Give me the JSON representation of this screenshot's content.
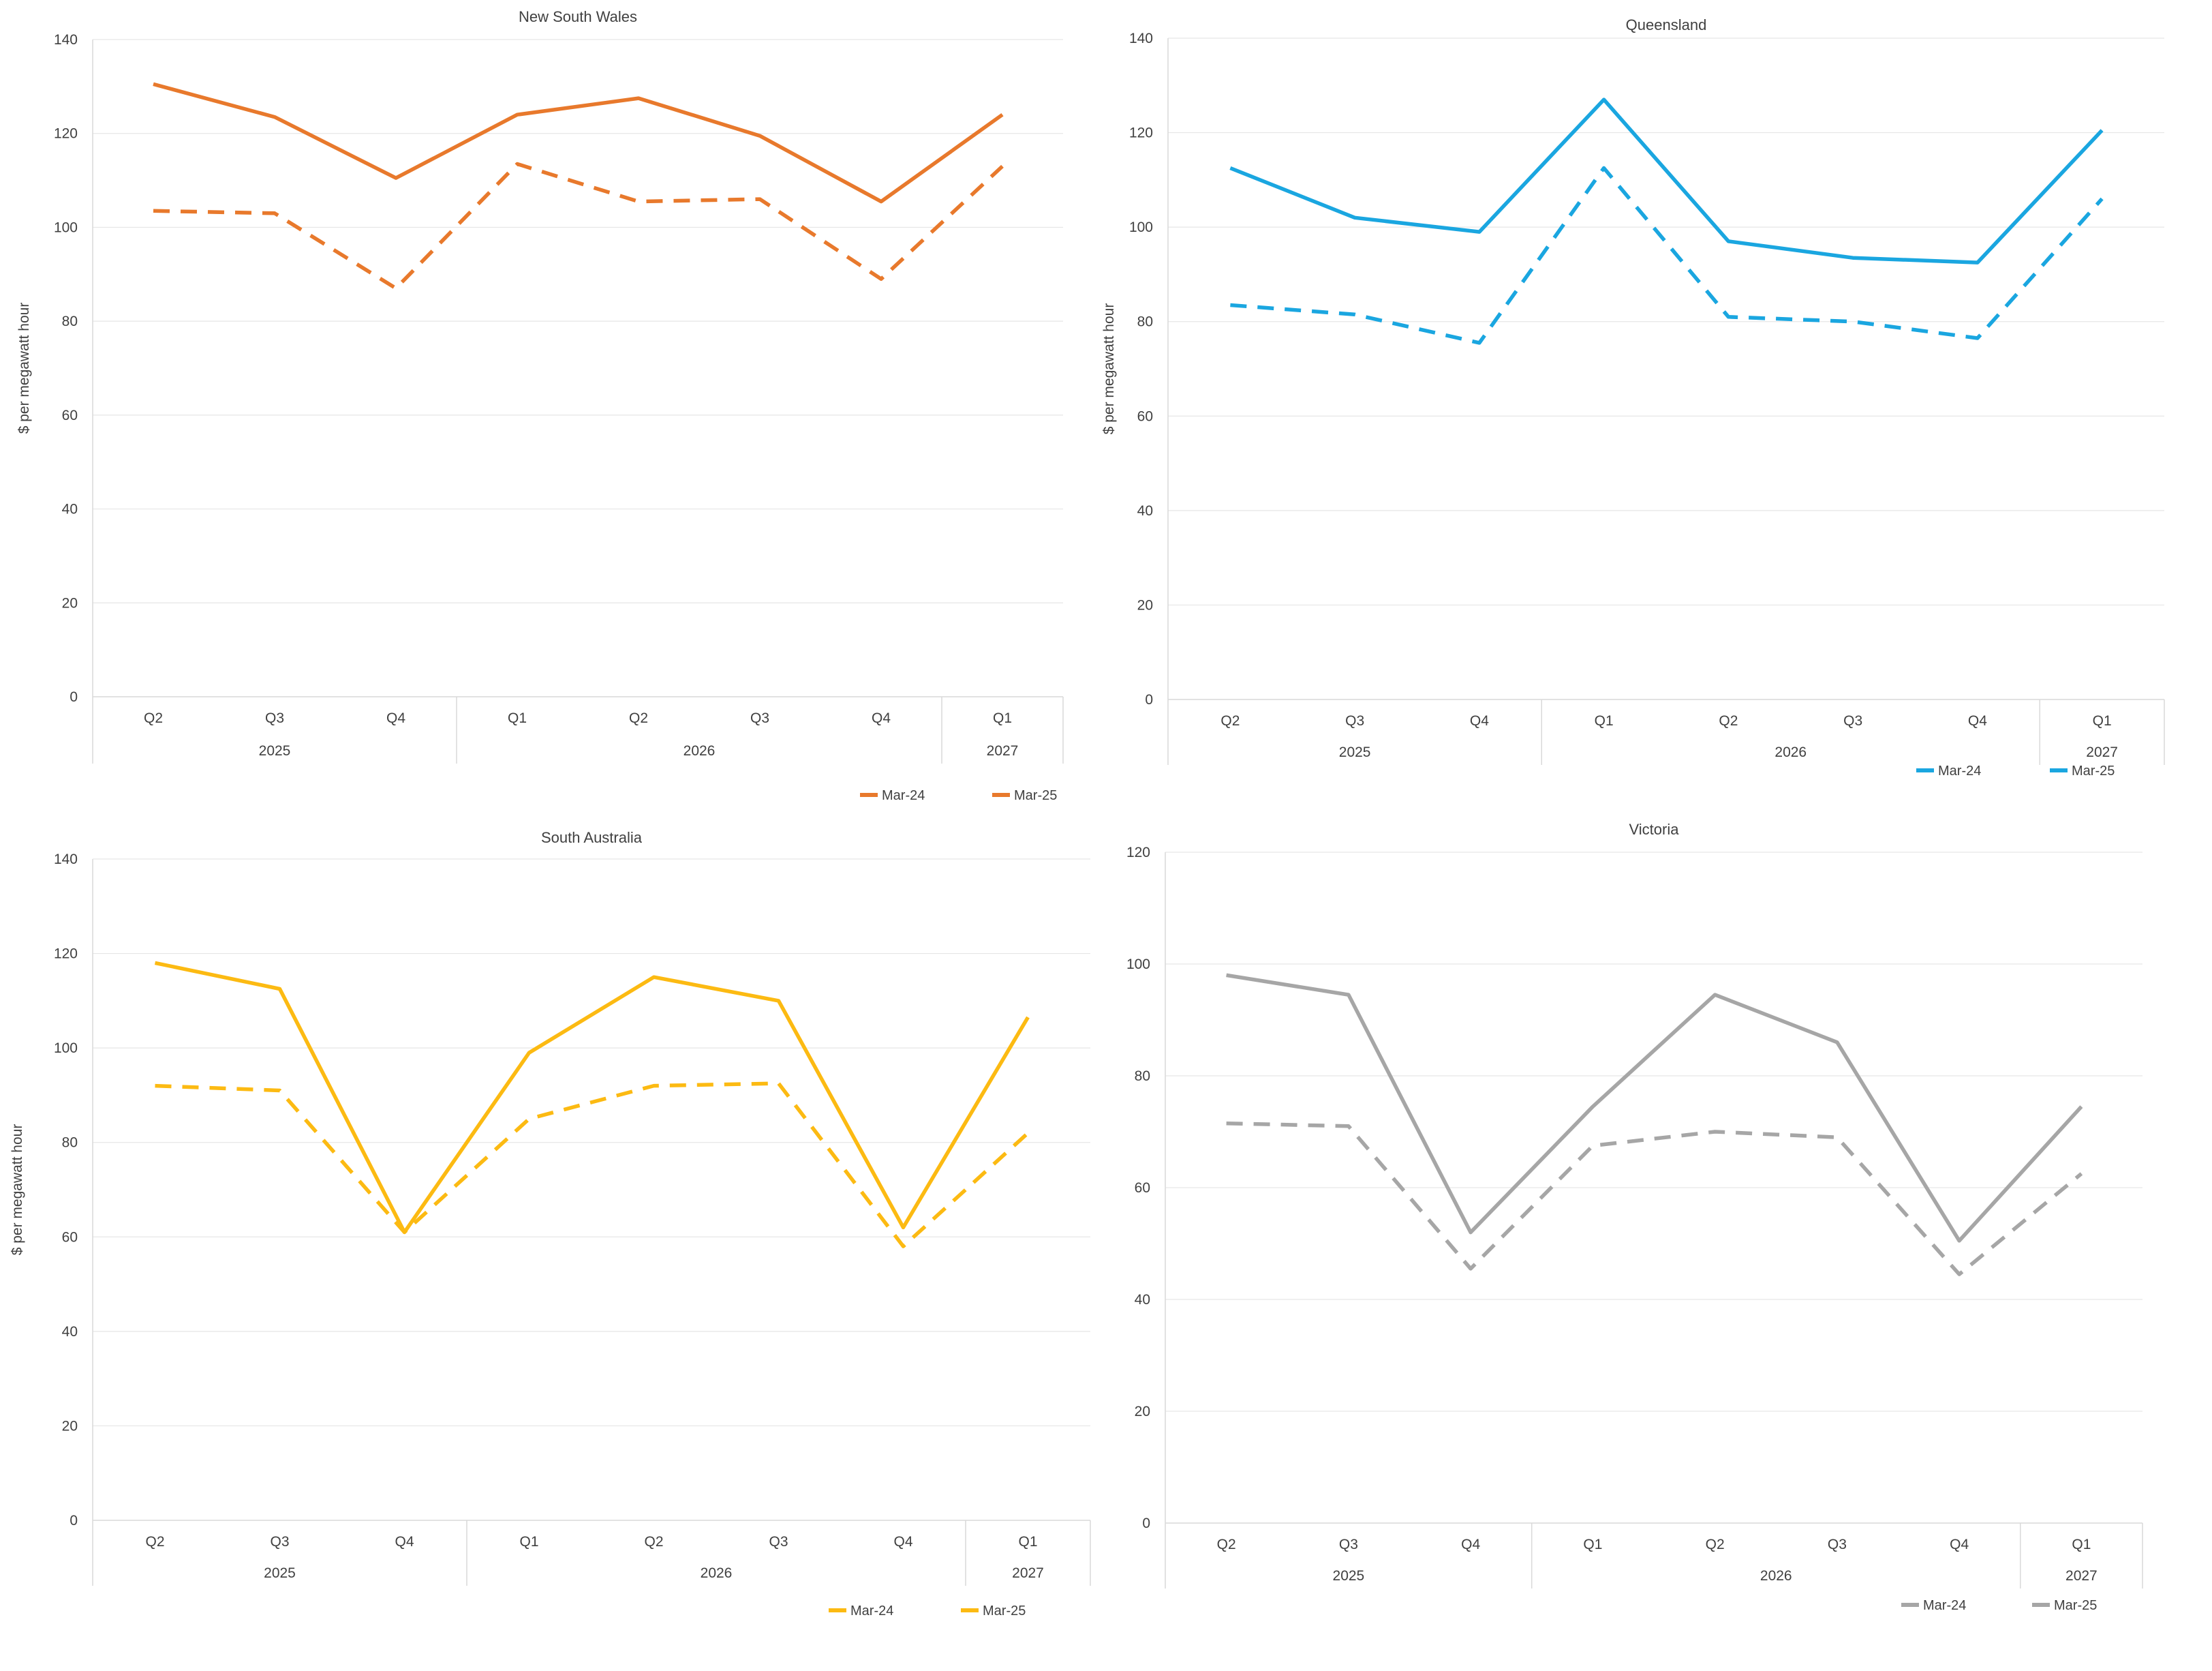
{
  "chart_data": [
    {
      "type": "line",
      "title": "New South Wales",
      "ylabel": "$ per megawatt hour",
      "xlabel": "",
      "ylim": [
        0,
        140
      ],
      "yticks": [
        0,
        20,
        40,
        60,
        80,
        100,
        120,
        140
      ],
      "categories": [
        "Q2",
        "Q3",
        "Q4",
        "Q1",
        "Q2",
        "Q3",
        "Q4",
        "Q1"
      ],
      "groups": [
        {
          "label": "2025",
          "count": 3
        },
        {
          "label": "2026",
          "count": 4
        },
        {
          "label": "2027",
          "count": 1
        }
      ],
      "grid": true,
      "legend_position": "bottom-right",
      "color": "#e8792c",
      "series": [
        {
          "name": "Mar-24",
          "style": "dashed",
          "values": [
            103.5,
            103,
            87,
            113.5,
            105.5,
            106,
            89,
            113
          ]
        },
        {
          "name": "Mar-25",
          "style": "solid",
          "values": [
            130.5,
            123.5,
            110.5,
            124,
            127.5,
            119.5,
            105.5,
            124
          ]
        }
      ]
    },
    {
      "type": "line",
      "title": "Queensland",
      "ylabel": "$ per megawatt hour",
      "xlabel": "",
      "ylim": [
        0,
        140
      ],
      "yticks": [
        0,
        20,
        40,
        60,
        80,
        100,
        120,
        140
      ],
      "categories": [
        "Q2",
        "Q3",
        "Q4",
        "Q1",
        "Q2",
        "Q3",
        "Q4",
        "Q1"
      ],
      "groups": [
        {
          "label": "2025",
          "count": 3
        },
        {
          "label": "2026",
          "count": 4
        },
        {
          "label": "2027",
          "count": 1
        }
      ],
      "grid": true,
      "legend_position": "bottom-right",
      "color": "#1aa6e0",
      "series": [
        {
          "name": "Mar-24",
          "style": "dashed",
          "values": [
            83.5,
            81.5,
            75.5,
            112.5,
            81,
            80,
            76.5,
            106
          ]
        },
        {
          "name": "Mar-25",
          "style": "solid",
          "values": [
            112.5,
            102,
            99,
            127,
            97,
            93.5,
            92.5,
            120.5
          ]
        }
      ]
    },
    {
      "type": "line",
      "title": "South Australia",
      "ylabel": "$ per megawatt hour",
      "xlabel": "",
      "ylim": [
        0,
        140
      ],
      "yticks": [
        0,
        20,
        40,
        60,
        80,
        100,
        120,
        140
      ],
      "categories": [
        "Q2",
        "Q3",
        "Q4",
        "Q1",
        "Q2",
        "Q3",
        "Q4",
        "Q1"
      ],
      "groups": [
        {
          "label": "2025",
          "count": 3
        },
        {
          "label": "2026",
          "count": 4
        },
        {
          "label": "2027",
          "count": 1
        }
      ],
      "grid": true,
      "legend_position": "bottom-right",
      "color": "#fcba12",
      "series": [
        {
          "name": "Mar-24",
          "style": "dashed",
          "values": [
            92,
            91,
            61,
            85,
            92,
            92.5,
            58,
            82
          ]
        },
        {
          "name": "Mar-25",
          "style": "solid",
          "values": [
            118,
            112.5,
            61,
            99,
            115,
            110,
            62,
            106.5
          ]
        }
      ]
    },
    {
      "type": "line",
      "title": "Victoria",
      "ylabel": "",
      "xlabel": "",
      "ylim": [
        0,
        120
      ],
      "yticks": [
        0,
        20,
        40,
        60,
        80,
        100,
        120
      ],
      "categories": [
        "Q2",
        "Q3",
        "Q4",
        "Q1",
        "Q2",
        "Q3",
        "Q4",
        "Q1"
      ],
      "groups": [
        {
          "label": "2025",
          "count": 3
        },
        {
          "label": "2026",
          "count": 4
        },
        {
          "label": "2027",
          "count": 1
        }
      ],
      "grid": true,
      "legend_position": "bottom-right",
      "color": "#a6a6a6",
      "series": [
        {
          "name": "Mar-24",
          "style": "dashed",
          "values": [
            71.5,
            71,
            45.5,
            67.5,
            70,
            69,
            44.5,
            62.5
          ]
        },
        {
          "name": "Mar-25",
          "style": "solid",
          "values": [
            98,
            94.5,
            52,
            74.5,
            94.5,
            86,
            50.5,
            74.5
          ]
        }
      ]
    }
  ]
}
